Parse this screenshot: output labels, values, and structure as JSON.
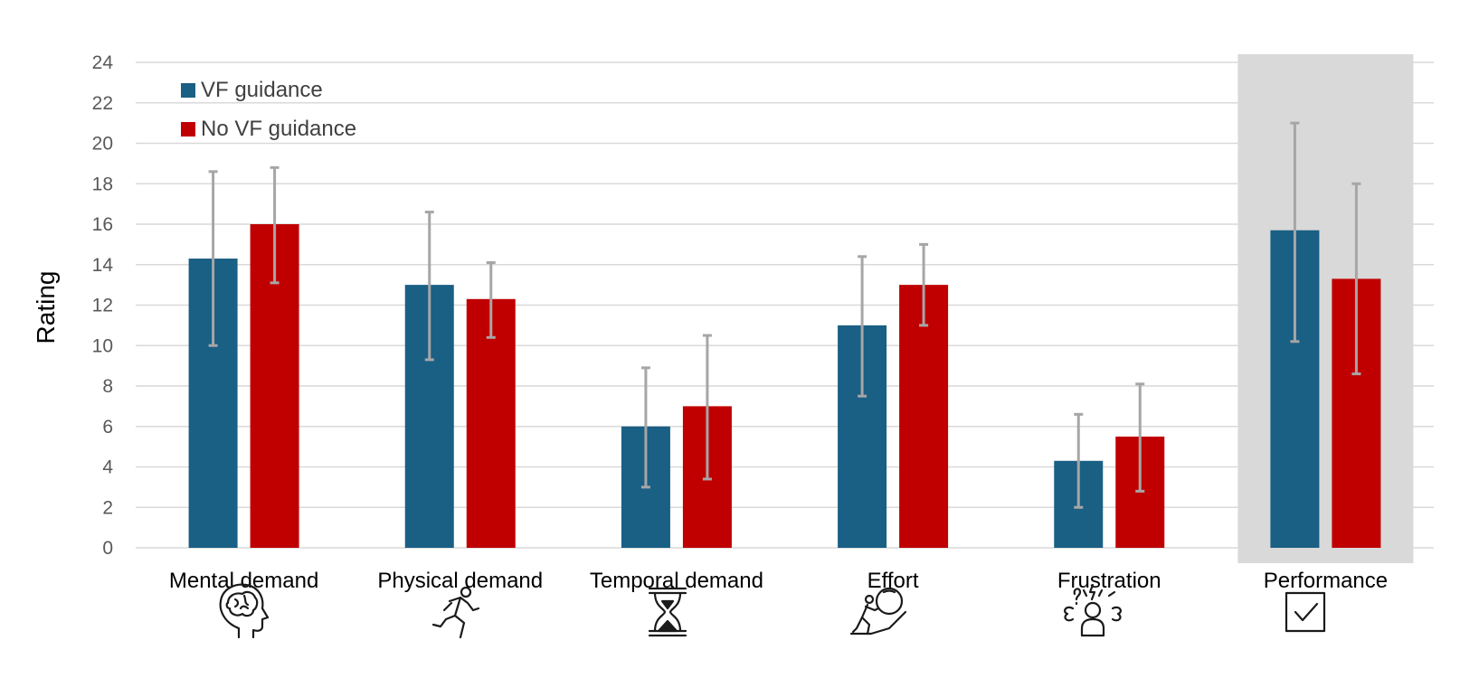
{
  "chart_data": {
    "type": "bar",
    "title": "",
    "xlabel": "",
    "ylabel": "Rating",
    "ylim": [
      0,
      24
    ],
    "ytick_step": 2,
    "grid": true,
    "legend_position": "top-left",
    "categories": [
      "Mental demand",
      "Physical demand",
      "Temporal demand",
      "Effort",
      "Frustration",
      "Performance"
    ],
    "category_icons": [
      "brain-head-icon",
      "running-person-icon",
      "hourglass-icon",
      "person-pushing-boulder-icon",
      "frustrated-person-icon",
      "checkbox-check-icon"
    ],
    "highlighted_category": "Performance",
    "highlight_color": "#d9d9d9",
    "series": [
      {
        "name": "VF guidance",
        "color": "#1a5f84",
        "values": [
          14.3,
          13.0,
          6.0,
          11.0,
          4.3,
          15.7
        ],
        "error_low": [
          10.0,
          9.3,
          3.0,
          7.5,
          2.0,
          10.2
        ],
        "error_high": [
          18.6,
          16.6,
          8.9,
          14.4,
          6.6,
          21.0
        ]
      },
      {
        "name": "No VF guidance",
        "color": "#c00000",
        "values": [
          16.0,
          12.3,
          7.0,
          13.0,
          5.5,
          13.3
        ],
        "error_low": [
          13.1,
          10.4,
          3.4,
          11.0,
          2.8,
          8.6
        ],
        "error_high": [
          18.8,
          14.1,
          10.5,
          15.0,
          8.1,
          18.0
        ]
      }
    ],
    "error_bar_color": "#a6a6a6",
    "grid_color": "#d9d9d9",
    "text_color": "#595959"
  }
}
